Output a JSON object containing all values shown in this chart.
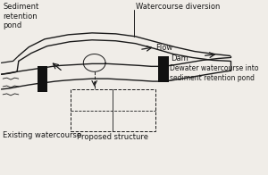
{
  "bg_color": "#f0ede8",
  "line_color": "#1a1a1a",
  "black_fill": "#111111",
  "labels": {
    "sediment_pond": "Sediment\nretention\npond",
    "watercourse_diversion": "Watercourse diversion",
    "flow": "Flow",
    "dam": "Dam",
    "dewater": "Dewater watercourse into\nsediment retention pond",
    "existing_watercourse": "Existing watercourse",
    "proposed_structure": "Proposed structure"
  },
  "fontsize": 6.0
}
